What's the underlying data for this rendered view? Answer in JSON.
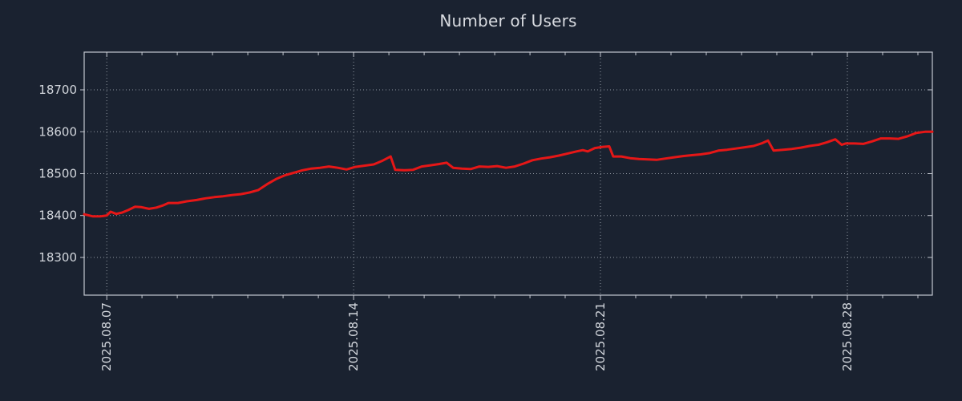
{
  "page": {
    "background": "#1a2230"
  },
  "chart_data": {
    "type": "line",
    "title": "Number of Users",
    "legend": "none",
    "grid": "dotted",
    "colors": {
      "background": "#1a2230",
      "line": "#e61717",
      "axis": "#c3c7cf",
      "grid": "#a8aeb8",
      "tick_label": "#d2d6dc",
      "title": "#d8dbe0"
    },
    "x_axis": {
      "unit": "date",
      "range_days": [
        -0.64,
        23.41
      ],
      "minor_tick_every_days": 1,
      "ticks": [
        {
          "day": 0,
          "label": "2025.08.07"
        },
        {
          "day": 7,
          "label": "2025.08.14"
        },
        {
          "day": 14,
          "label": "2025.08.21"
        },
        {
          "day": 21,
          "label": "2025.08.28"
        }
      ]
    },
    "y_axis": {
      "range": [
        18210,
        18790
      ],
      "ticks": [
        18300,
        18400,
        18500,
        18600,
        18700
      ]
    },
    "series": [
      {
        "name": "Number of Users",
        "color": "#e61717",
        "points": [
          [
            -0.64,
            18403
          ],
          [
            -0.39,
            18398
          ],
          [
            -0.18,
            18398
          ],
          [
            0,
            18400
          ],
          [
            0.11,
            18409
          ],
          [
            0.27,
            18404
          ],
          [
            0.43,
            18407
          ],
          [
            0.61,
            18413
          ],
          [
            0.8,
            18421
          ],
          [
            0.98,
            18420
          ],
          [
            1.2,
            18416
          ],
          [
            1.41,
            18419
          ],
          [
            1.59,
            18424
          ],
          [
            1.75,
            18430
          ],
          [
            2.02,
            18430
          ],
          [
            2.27,
            18434
          ],
          [
            2.55,
            18437
          ],
          [
            2.8,
            18441
          ],
          [
            3.05,
            18444
          ],
          [
            3.3,
            18446
          ],
          [
            3.57,
            18449
          ],
          [
            3.8,
            18451
          ],
          [
            4.05,
            18455
          ],
          [
            4.3,
            18461
          ],
          [
            4.55,
            18475
          ],
          [
            4.8,
            18487
          ],
          [
            5.05,
            18496
          ],
          [
            5.3,
            18502
          ],
          [
            5.55,
            18508
          ],
          [
            5.8,
            18512
          ],
          [
            6.05,
            18514
          ],
          [
            6.3,
            18517
          ],
          [
            6.55,
            18514
          ],
          [
            6.8,
            18510
          ],
          [
            7.05,
            18516
          ],
          [
            7.3,
            18519
          ],
          [
            7.57,
            18522
          ],
          [
            7.8,
            18530
          ],
          [
            8.05,
            18541
          ],
          [
            8.18,
            18509
          ],
          [
            8.43,
            18508
          ],
          [
            8.68,
            18509
          ],
          [
            8.93,
            18517
          ],
          [
            9.18,
            18520
          ],
          [
            9.43,
            18523
          ],
          [
            9.64,
            18526
          ],
          [
            9.82,
            18514
          ],
          [
            10.07,
            18512
          ],
          [
            10.32,
            18511
          ],
          [
            10.57,
            18517
          ],
          [
            10.82,
            18516
          ],
          [
            11.07,
            18518
          ],
          [
            11.32,
            18514
          ],
          [
            11.57,
            18517
          ],
          [
            11.82,
            18524
          ],
          [
            12.07,
            18532
          ],
          [
            12.32,
            18536
          ],
          [
            12.57,
            18539
          ],
          [
            12.82,
            18543
          ],
          [
            13.07,
            18548
          ],
          [
            13.32,
            18553
          ],
          [
            13.5,
            18556
          ],
          [
            13.64,
            18553
          ],
          [
            13.84,
            18561
          ],
          [
            14.07,
            18564
          ],
          [
            14.25,
            18565
          ],
          [
            14.36,
            18541
          ],
          [
            14.59,
            18541
          ],
          [
            14.84,
            18537
          ],
          [
            15.09,
            18535
          ],
          [
            15.34,
            18534
          ],
          [
            15.59,
            18533
          ],
          [
            15.84,
            18536
          ],
          [
            16.09,
            18539
          ],
          [
            16.34,
            18542
          ],
          [
            16.59,
            18544
          ],
          [
            16.84,
            18546
          ],
          [
            17.09,
            18549
          ],
          [
            17.34,
            18555
          ],
          [
            17.59,
            18557
          ],
          [
            17.84,
            18560
          ],
          [
            18.09,
            18563
          ],
          [
            18.34,
            18566
          ],
          [
            18.59,
            18573
          ],
          [
            18.75,
            18579
          ],
          [
            18.91,
            18555
          ],
          [
            19.18,
            18557
          ],
          [
            19.43,
            18559
          ],
          [
            19.68,
            18562
          ],
          [
            19.93,
            18566
          ],
          [
            20.18,
            18569
          ],
          [
            20.43,
            18575
          ],
          [
            20.66,
            18582
          ],
          [
            20.84,
            18569
          ],
          [
            20.95,
            18572
          ],
          [
            21.2,
            18572
          ],
          [
            21.45,
            18571
          ],
          [
            21.7,
            18577
          ],
          [
            21.95,
            18584
          ],
          [
            22.2,
            18584
          ],
          [
            22.45,
            18583
          ],
          [
            22.7,
            18589
          ],
          [
            22.95,
            18597
          ],
          [
            23.2,
            18600
          ],
          [
            23.41,
            18600
          ]
        ]
      }
    ]
  }
}
